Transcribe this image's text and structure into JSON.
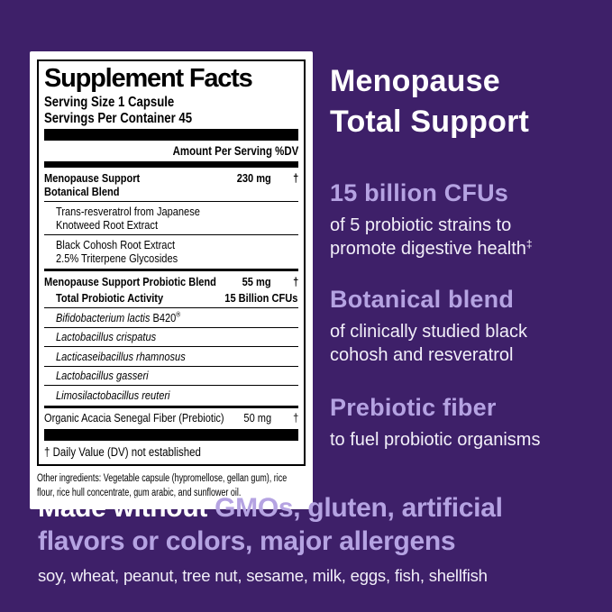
{
  "colors": {
    "background": "#3E2069",
    "accent": "#B5A3E2",
    "panel_bg": "#FFFFFF",
    "ink": "#000000",
    "body_text": "#F2EFF9",
    "white": "#FFFFFF"
  },
  "facts_panel": {
    "title": "Supplement Facts",
    "serving_size": "Serving Size  1 Capsule",
    "servings_per_container": "Servings Per Container  45",
    "amount_header": "Amount Per Serving %DV",
    "rows": [
      {
        "line1": "Menopause Support",
        "line2": "Botanical Blend",
        "amount": "230 mg",
        "dv": "†"
      },
      {
        "line1": "Trans-resveratrol from Japanese",
        "line2": "Knotweed Root Extract"
      },
      {
        "line1": "Black Cohosh Root Extract",
        "line2": "2.5% Triterpene Glycosides"
      },
      {
        "line1": "Menopause Support Probiotic Blend",
        "amount": "55 mg",
        "dv": "†",
        "line2": "Total Probiotic Activity",
        "line2_value": "15 Billion CFUs"
      },
      {
        "species": "Bifidobacterium lactis",
        "strain": " B420",
        "mark": "®"
      },
      {
        "species": "Lactobacillus crispatus"
      },
      {
        "species": "Lacticaseibacillus rhamnosus"
      },
      {
        "species": "Lactobacillus gasseri"
      },
      {
        "species": "Limosilactobacillus reuteri"
      },
      {
        "line1": "Organic Acacia Senegal Fiber (Prebiotic)",
        "amount": "50 mg",
        "dv": "†"
      }
    ],
    "footnote": "† Daily Value (DV) not established",
    "other_ingredients": "Other ingredients: Vegetable capsule (hypromellose, gellan gum), rice flour, rice hull concentrate, gum arabic, and sunflower oil."
  },
  "right_column": {
    "heading_lines": [
      "Menopause",
      "Total Support"
    ],
    "features": [
      {
        "title": "15 billion CFUs",
        "body_lines": [
          "of 5 probiotic strains to",
          "promote digestive health"
        ],
        "sup": "‡"
      },
      {
        "title": "Botanical blend",
        "body_lines": [
          "of clinically studied black",
          "cohosh and resveratrol"
        ]
      },
      {
        "title": "Prebiotic fiber",
        "body_lines": [
          "to fuel probiotic organisms"
        ]
      }
    ]
  },
  "bottom": {
    "line1_white": "Made without ",
    "line1_accent": "GMOs, gluten, artificial",
    "line2_accent": "flavors or colors, major allergens",
    "allergens": "soy, wheat, peanut, tree nut, sesame, milk, eggs, fish, shellfish"
  }
}
